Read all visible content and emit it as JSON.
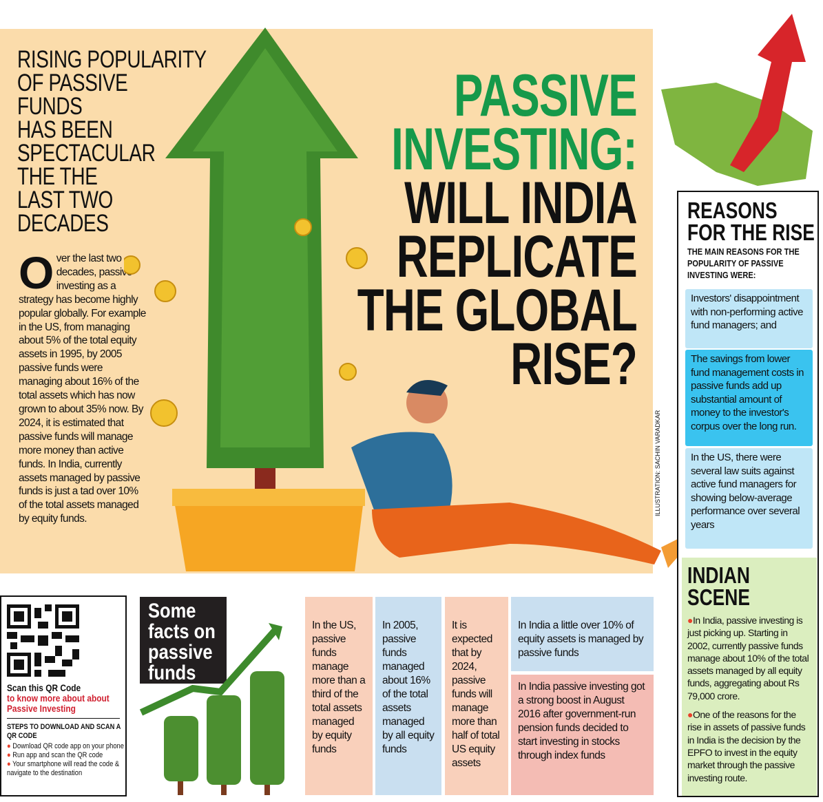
{
  "kicker": {
    "lines": [
      "RISING POPULARITY",
      "OF PASSIVE",
      "FUNDS",
      "HAS BEEN",
      "SPECTACULAR",
      "THE THE",
      "LAST TWO",
      "DECADES"
    ]
  },
  "intro": {
    "dropcap": "O",
    "text": "ver the last two decades, passive investing as a strategy has become highly popular globally. For example in the US, from managing about 5% of the total equity assets in 1995, by 2005 passive funds were managing about 16% of the total assets which has now grown to about 35% now. By 2024, it is estimated that passive funds will manage more money than active funds. In India, currently assets managed by passive funds is just a tad over 10% of the total assets managed by equity funds."
  },
  "title": {
    "lines": [
      "PASSIVE",
      "INVESTING:",
      "WILL INDIA",
      "REPLICATE",
      "THE GLOBAL",
      "RISE?"
    ]
  },
  "credit": "ILLUSTRATION: SACHIN VARADKAR",
  "reasons": {
    "heading": [
      "REASONS",
      "FOR THE RISE"
    ],
    "subtitle": [
      "THE MAIN REASONS FOR THE",
      "POPULARITY OF PASSIVE",
      "INVESTING WERE:"
    ],
    "items": [
      "Investors' disappointment with non-performing active fund managers; and",
      "The savings from lower fund management costs in passive funds add up substantial amount of money to the investor's corpus over the long run.",
      "In the US, there were several law suits against active fund managers for showing below-average performance over several years"
    ]
  },
  "indian_scene": {
    "heading": [
      "INDIAN",
      "SCENE"
    ],
    "items": [
      "In India, passive investing is just picking up. Starting in 2002, currently passive funds manage about 10% of the total assets managed by all equity funds, aggregating about Rs 79,000 crore.",
      "One of the reasons for the rise in assets of passive funds in India is the decision by the EPFO to invest in the equity market through the passive investing route."
    ]
  },
  "qr": {
    "line1": "Scan this QR Code",
    "line2": "to know more about about",
    "line3": "Passive Investing",
    "steps_title": "STEPS TO DOWNLOAD AND SCAN A QR CODE",
    "steps": [
      "Download QR code app on your phone",
      "Run app and scan the QR code",
      "Your smartphone will read the code & navigate to the destination"
    ]
  },
  "facts": {
    "title": [
      "Some",
      "facts on",
      "passive",
      "funds"
    ],
    "cols": [
      "In the US, passive funds manage more than a third of the total assets managed by equity funds",
      "In 2005, passive funds managed about 16% of the total assets managed by all equity funds",
      "It is expected that by 2024, passive funds will manage more than half of total US equity assets",
      "In India a little over 10% of equity assets is managed by passive funds",
      "In India passive investing got a strong boost in August 2016 after government-run pension funds decided to start investing in stocks through index funds"
    ]
  },
  "colors": {
    "background": "#fbdcab",
    "green": "#16994a",
    "light_blue": "#bfe6f7",
    "cyan": "#3ac3ef",
    "indian_green": "#dbeebf",
    "peach": "#f9d0bb",
    "pink": "#f4bcb4",
    "accent_red": "#d01f2f"
  }
}
